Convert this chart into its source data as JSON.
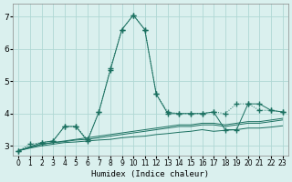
{
  "xlabel": "Humidex (Indice chaleur)",
  "bg_color": "#daf0ee",
  "grid_color": "#b0d8d4",
  "line_color": "#1a7060",
  "xlim": [
    -0.5,
    23.5
  ],
  "ylim": [
    2.7,
    7.4
  ],
  "yticks": [
    3,
    4,
    5,
    6,
    7
  ],
  "xticks": [
    0,
    1,
    2,
    3,
    4,
    5,
    6,
    7,
    8,
    9,
    10,
    11,
    12,
    13,
    14,
    15,
    16,
    17,
    18,
    19,
    20,
    21,
    22,
    23
  ],
  "series": [
    {
      "x": [
        0,
        1,
        2,
        3,
        4,
        5,
        6,
        7,
        8,
        9,
        10,
        11,
        12,
        13,
        14,
        15,
        16,
        17,
        18,
        19,
        20,
        21,
        22,
        23
      ],
      "y": [
        2.85,
        3.05,
        3.1,
        3.15,
        3.6,
        3.6,
        3.2,
        4.05,
        5.4,
        6.6,
        7.05,
        6.6,
        4.6,
        4.05,
        4.0,
        4.0,
        4.0,
        4.05,
        4.0,
        4.3,
        4.3,
        4.1,
        4.1,
        4.05
      ],
      "marker": "+",
      "markersize": 4,
      "linestyle": ":"
    },
    {
      "x": [
        0,
        2,
        3,
        4,
        5,
        6,
        7,
        8,
        9,
        10,
        11,
        12,
        13,
        14,
        15,
        16,
        17,
        18,
        19,
        20,
        21,
        22,
        23
      ],
      "y": [
        2.85,
        3.1,
        3.15,
        3.6,
        3.6,
        3.15,
        4.05,
        5.35,
        6.6,
        7.05,
        6.6,
        4.6,
        4.0,
        4.0,
        4.0,
        4.0,
        4.05,
        3.5,
        3.5,
        4.3,
        4.3,
        4.1,
        4.05
      ],
      "marker": "+",
      "markersize": 4,
      "linestyle": "-"
    },
    {
      "x": [
        0,
        1,
        2,
        3,
        4,
        5,
        6,
        7,
        8,
        9,
        10,
        11,
        12,
        13,
        14,
        15,
        16,
        17,
        18,
        19,
        20,
        21,
        22,
        23
      ],
      "y": [
        2.85,
        2.95,
        3.05,
        3.1,
        3.15,
        3.2,
        3.25,
        3.3,
        3.35,
        3.4,
        3.45,
        3.5,
        3.55,
        3.6,
        3.65,
        3.65,
        3.7,
        3.7,
        3.65,
        3.7,
        3.75,
        3.75,
        3.8,
        3.85
      ],
      "marker": null,
      "markersize": 0,
      "linestyle": "-"
    },
    {
      "x": [
        0,
        1,
        2,
        3,
        4,
        5,
        6,
        7,
        8,
        9,
        10,
        11,
        12,
        13,
        14,
        15,
        16,
        17,
        18,
        19,
        20,
        21,
        22,
        23
      ],
      "y": [
        2.85,
        2.95,
        3.05,
        3.1,
        3.13,
        3.18,
        3.2,
        3.25,
        3.3,
        3.35,
        3.4,
        3.45,
        3.5,
        3.55,
        3.6,
        3.6,
        3.65,
        3.65,
        3.6,
        3.65,
        3.7,
        3.7,
        3.75,
        3.8
      ],
      "marker": null,
      "markersize": 0,
      "linestyle": "-"
    },
    {
      "x": [
        0,
        1,
        2,
        3,
        4,
        5,
        6,
        7,
        8,
        9,
        10,
        11,
        12,
        13,
        14,
        15,
        16,
        17,
        18,
        19,
        20,
        21,
        22,
        23
      ],
      "y": [
        2.85,
        2.93,
        3.0,
        3.05,
        3.1,
        3.12,
        3.15,
        3.18,
        3.2,
        3.25,
        3.28,
        3.3,
        3.35,
        3.38,
        3.42,
        3.45,
        3.5,
        3.45,
        3.48,
        3.5,
        3.55,
        3.55,
        3.58,
        3.62
      ],
      "marker": null,
      "markersize": 0,
      "linestyle": "-"
    }
  ]
}
